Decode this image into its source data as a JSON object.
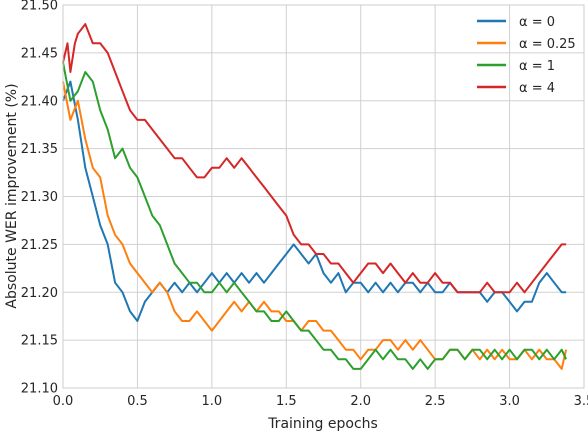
{
  "chart_data": {
    "type": "line",
    "title": "",
    "xlabel": "Training epochs",
    "ylabel": "Absolute WER improvement (%)",
    "xlim": [
      0.0,
      3.5
    ],
    "ylim": [
      21.1,
      21.5
    ],
    "xticks": [
      "0.0",
      "0.5",
      "1.0",
      "1.5",
      "2.0",
      "2.5",
      "3.0",
      "3.5"
    ],
    "yticks": [
      "21.10",
      "21.15",
      "21.20",
      "21.25",
      "21.30",
      "21.35",
      "21.40",
      "21.45",
      "21.50"
    ],
    "grid": true,
    "legend_position": "top-right",
    "series": [
      {
        "name": "α = 0",
        "color": "#1f77b4",
        "points": [
          [
            0.0,
            21.4
          ],
          [
            0.05,
            21.42
          ],
          [
            0.1,
            21.38
          ],
          [
            0.15,
            21.33
          ],
          [
            0.2,
            21.3
          ],
          [
            0.25,
            21.27
          ],
          [
            0.3,
            21.25
          ],
          [
            0.35,
            21.21
          ],
          [
            0.4,
            21.2
          ],
          [
            0.45,
            21.18
          ],
          [
            0.5,
            21.17
          ],
          [
            0.55,
            21.19
          ],
          [
            0.6,
            21.2
          ],
          [
            0.65,
            21.21
          ],
          [
            0.7,
            21.2
          ],
          [
            0.75,
            21.21
          ],
          [
            0.8,
            21.2
          ],
          [
            0.85,
            21.21
          ],
          [
            0.9,
            21.2
          ],
          [
            0.95,
            21.21
          ],
          [
            1.0,
            21.22
          ],
          [
            1.05,
            21.21
          ],
          [
            1.1,
            21.22
          ],
          [
            1.15,
            21.21
          ],
          [
            1.2,
            21.22
          ],
          [
            1.25,
            21.21
          ],
          [
            1.3,
            21.22
          ],
          [
            1.35,
            21.21
          ],
          [
            1.4,
            21.22
          ],
          [
            1.45,
            21.23
          ],
          [
            1.5,
            21.24
          ],
          [
            1.55,
            21.25
          ],
          [
            1.6,
            21.24
          ],
          [
            1.65,
            21.23
          ],
          [
            1.7,
            21.24
          ],
          [
            1.75,
            21.22
          ],
          [
            1.8,
            21.21
          ],
          [
            1.85,
            21.22
          ],
          [
            1.9,
            21.2
          ],
          [
            1.95,
            21.21
          ],
          [
            2.0,
            21.21
          ],
          [
            2.05,
            21.2
          ],
          [
            2.1,
            21.21
          ],
          [
            2.15,
            21.2
          ],
          [
            2.2,
            21.21
          ],
          [
            2.25,
            21.2
          ],
          [
            2.3,
            21.21
          ],
          [
            2.35,
            21.21
          ],
          [
            2.4,
            21.2
          ],
          [
            2.45,
            21.21
          ],
          [
            2.5,
            21.2
          ],
          [
            2.55,
            21.2
          ],
          [
            2.6,
            21.21
          ],
          [
            2.65,
            21.2
          ],
          [
            2.7,
            21.2
          ],
          [
            2.75,
            21.2
          ],
          [
            2.8,
            21.2
          ],
          [
            2.85,
            21.19
          ],
          [
            2.9,
            21.2
          ],
          [
            2.95,
            21.2
          ],
          [
            3.0,
            21.19
          ],
          [
            3.05,
            21.18
          ],
          [
            3.1,
            21.19
          ],
          [
            3.15,
            21.19
          ],
          [
            3.2,
            21.21
          ],
          [
            3.25,
            21.22
          ],
          [
            3.3,
            21.21
          ],
          [
            3.35,
            21.2
          ],
          [
            3.38,
            21.2
          ]
        ]
      },
      {
        "name": "α = 0.25",
        "color": "#ff7f0e",
        "points": [
          [
            0.0,
            21.42
          ],
          [
            0.05,
            21.38
          ],
          [
            0.1,
            21.4
          ],
          [
            0.15,
            21.36
          ],
          [
            0.2,
            21.33
          ],
          [
            0.25,
            21.32
          ],
          [
            0.3,
            21.28
          ],
          [
            0.35,
            21.26
          ],
          [
            0.4,
            21.25
          ],
          [
            0.45,
            21.23
          ],
          [
            0.5,
            21.22
          ],
          [
            0.55,
            21.21
          ],
          [
            0.6,
            21.2
          ],
          [
            0.65,
            21.21
          ],
          [
            0.7,
            21.2
          ],
          [
            0.75,
            21.18
          ],
          [
            0.8,
            21.17
          ],
          [
            0.85,
            21.17
          ],
          [
            0.9,
            21.18
          ],
          [
            0.95,
            21.17
          ],
          [
            1.0,
            21.16
          ],
          [
            1.05,
            21.17
          ],
          [
            1.1,
            21.18
          ],
          [
            1.15,
            21.19
          ],
          [
            1.2,
            21.18
          ],
          [
            1.25,
            21.19
          ],
          [
            1.3,
            21.18
          ],
          [
            1.35,
            21.19
          ],
          [
            1.4,
            21.18
          ],
          [
            1.45,
            21.18
          ],
          [
            1.5,
            21.17
          ],
          [
            1.55,
            21.17
          ],
          [
            1.6,
            21.16
          ],
          [
            1.65,
            21.17
          ],
          [
            1.7,
            21.17
          ],
          [
            1.75,
            21.16
          ],
          [
            1.8,
            21.16
          ],
          [
            1.85,
            21.15
          ],
          [
            1.9,
            21.14
          ],
          [
            1.95,
            21.14
          ],
          [
            2.0,
            21.13
          ],
          [
            2.05,
            21.14
          ],
          [
            2.1,
            21.14
          ],
          [
            2.15,
            21.15
          ],
          [
            2.2,
            21.15
          ],
          [
            2.25,
            21.14
          ],
          [
            2.3,
            21.15
          ],
          [
            2.35,
            21.14
          ],
          [
            2.4,
            21.15
          ],
          [
            2.45,
            21.14
          ],
          [
            2.5,
            21.13
          ],
          [
            2.55,
            21.13
          ],
          [
            2.6,
            21.14
          ],
          [
            2.65,
            21.14
          ],
          [
            2.7,
            21.13
          ],
          [
            2.75,
            21.14
          ],
          [
            2.8,
            21.13
          ],
          [
            2.85,
            21.14
          ],
          [
            2.9,
            21.13
          ],
          [
            2.95,
            21.14
          ],
          [
            3.0,
            21.13
          ],
          [
            3.05,
            21.13
          ],
          [
            3.1,
            21.14
          ],
          [
            3.15,
            21.13
          ],
          [
            3.2,
            21.14
          ],
          [
            3.25,
            21.13
          ],
          [
            3.3,
            21.13
          ],
          [
            3.35,
            21.12
          ],
          [
            3.38,
            21.14
          ]
        ]
      },
      {
        "name": "α = 1",
        "color": "#2ca02c",
        "points": [
          [
            0.0,
            21.44
          ],
          [
            0.05,
            21.4
          ],
          [
            0.1,
            21.41
          ],
          [
            0.15,
            21.43
          ],
          [
            0.2,
            21.42
          ],
          [
            0.25,
            21.39
          ],
          [
            0.3,
            21.37
          ],
          [
            0.35,
            21.34
          ],
          [
            0.4,
            21.35
          ],
          [
            0.45,
            21.33
          ],
          [
            0.5,
            21.32
          ],
          [
            0.55,
            21.3
          ],
          [
            0.6,
            21.28
          ],
          [
            0.65,
            21.27
          ],
          [
            0.7,
            21.25
          ],
          [
            0.75,
            21.23
          ],
          [
            0.8,
            21.22
          ],
          [
            0.85,
            21.21
          ],
          [
            0.9,
            21.21
          ],
          [
            0.95,
            21.2
          ],
          [
            1.0,
            21.2
          ],
          [
            1.05,
            21.21
          ],
          [
            1.1,
            21.2
          ],
          [
            1.15,
            21.21
          ],
          [
            1.2,
            21.2
          ],
          [
            1.25,
            21.19
          ],
          [
            1.3,
            21.18
          ],
          [
            1.35,
            21.18
          ],
          [
            1.4,
            21.17
          ],
          [
            1.45,
            21.17
          ],
          [
            1.5,
            21.18
          ],
          [
            1.55,
            21.17
          ],
          [
            1.6,
            21.16
          ],
          [
            1.65,
            21.16
          ],
          [
            1.7,
            21.15
          ],
          [
            1.75,
            21.14
          ],
          [
            1.8,
            21.14
          ],
          [
            1.85,
            21.13
          ],
          [
            1.9,
            21.13
          ],
          [
            1.95,
            21.12
          ],
          [
            2.0,
            21.12
          ],
          [
            2.05,
            21.13
          ],
          [
            2.1,
            21.14
          ],
          [
            2.15,
            21.13
          ],
          [
            2.2,
            21.14
          ],
          [
            2.25,
            21.13
          ],
          [
            2.3,
            21.13
          ],
          [
            2.35,
            21.12
          ],
          [
            2.4,
            21.13
          ],
          [
            2.45,
            21.12
          ],
          [
            2.5,
            21.13
          ],
          [
            2.55,
            21.13
          ],
          [
            2.6,
            21.14
          ],
          [
            2.65,
            21.14
          ],
          [
            2.7,
            21.13
          ],
          [
            2.75,
            21.14
          ],
          [
            2.8,
            21.14
          ],
          [
            2.85,
            21.13
          ],
          [
            2.9,
            21.14
          ],
          [
            2.95,
            21.13
          ],
          [
            3.0,
            21.14
          ],
          [
            3.05,
            21.13
          ],
          [
            3.1,
            21.14
          ],
          [
            3.15,
            21.14
          ],
          [
            3.2,
            21.13
          ],
          [
            3.25,
            21.14
          ],
          [
            3.3,
            21.13
          ],
          [
            3.35,
            21.14
          ],
          [
            3.38,
            21.13
          ]
        ]
      },
      {
        "name": "α = 4",
        "color": "#d62728",
        "points": [
          [
            0.0,
            21.44
          ],
          [
            0.03,
            21.46
          ],
          [
            0.05,
            21.43
          ],
          [
            0.08,
            21.46
          ],
          [
            0.1,
            21.47
          ],
          [
            0.15,
            21.48
          ],
          [
            0.2,
            21.46
          ],
          [
            0.25,
            21.46
          ],
          [
            0.3,
            21.45
          ],
          [
            0.35,
            21.43
          ],
          [
            0.4,
            21.41
          ],
          [
            0.45,
            21.39
          ],
          [
            0.5,
            21.38
          ],
          [
            0.55,
            21.38
          ],
          [
            0.6,
            21.37
          ],
          [
            0.65,
            21.36
          ],
          [
            0.7,
            21.35
          ],
          [
            0.75,
            21.34
          ],
          [
            0.8,
            21.34
          ],
          [
            0.85,
            21.33
          ],
          [
            0.9,
            21.32
          ],
          [
            0.95,
            21.32
          ],
          [
            1.0,
            21.33
          ],
          [
            1.05,
            21.33
          ],
          [
            1.1,
            21.34
          ],
          [
            1.15,
            21.33
          ],
          [
            1.2,
            21.34
          ],
          [
            1.25,
            21.33
          ],
          [
            1.3,
            21.32
          ],
          [
            1.35,
            21.31
          ],
          [
            1.4,
            21.3
          ],
          [
            1.45,
            21.29
          ],
          [
            1.5,
            21.28
          ],
          [
            1.55,
            21.26
          ],
          [
            1.6,
            21.25
          ],
          [
            1.65,
            21.25
          ],
          [
            1.7,
            21.24
          ],
          [
            1.75,
            21.24
          ],
          [
            1.8,
            21.23
          ],
          [
            1.85,
            21.23
          ],
          [
            1.9,
            21.22
          ],
          [
            1.95,
            21.21
          ],
          [
            2.0,
            21.22
          ],
          [
            2.05,
            21.23
          ],
          [
            2.1,
            21.23
          ],
          [
            2.15,
            21.22
          ],
          [
            2.2,
            21.23
          ],
          [
            2.25,
            21.22
          ],
          [
            2.3,
            21.21
          ],
          [
            2.35,
            21.22
          ],
          [
            2.4,
            21.21
          ],
          [
            2.45,
            21.21
          ],
          [
            2.5,
            21.22
          ],
          [
            2.55,
            21.21
          ],
          [
            2.6,
            21.21
          ],
          [
            2.65,
            21.2
          ],
          [
            2.7,
            21.2
          ],
          [
            2.75,
            21.2
          ],
          [
            2.8,
            21.2
          ],
          [
            2.85,
            21.21
          ],
          [
            2.9,
            21.2
          ],
          [
            2.95,
            21.2
          ],
          [
            3.0,
            21.2
          ],
          [
            3.05,
            21.21
          ],
          [
            3.1,
            21.2
          ],
          [
            3.15,
            21.21
          ],
          [
            3.2,
            21.22
          ],
          [
            3.25,
            21.23
          ],
          [
            3.3,
            21.24
          ],
          [
            3.35,
            21.25
          ],
          [
            3.38,
            21.25
          ]
        ]
      }
    ]
  }
}
